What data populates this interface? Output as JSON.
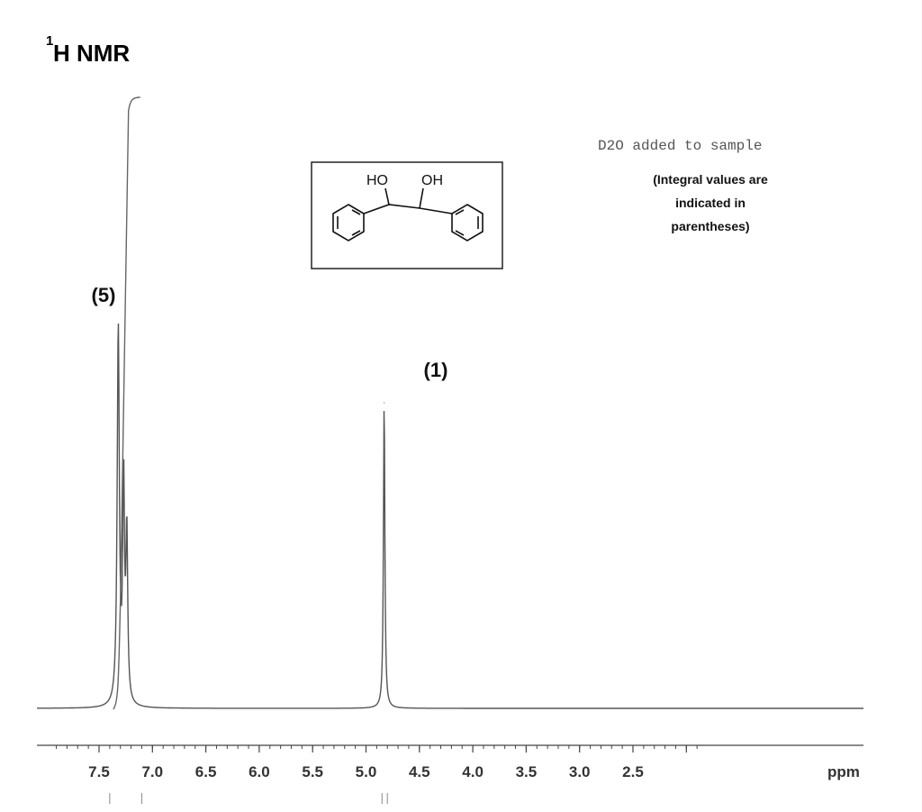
{
  "chart_data": {
    "type": "line",
    "title": "1H NMR",
    "title_main": "H NMR",
    "title_superscript": "1",
    "xlabel": "ppm",
    "ylabel": "",
    "xlim": [
      7.9,
      1.85
    ],
    "x_reversed": true,
    "x_ticks": [
      7.5,
      7.0,
      6.5,
      6.0,
      5.5,
      5.0,
      4.5,
      4.0,
      3.5,
      3.0,
      2.5
    ],
    "x_tick_labels": [
      "7.5",
      "7.0",
      "6.5",
      "6.0",
      "5.5",
      "5.0",
      "4.5",
      "4.0",
      "3.5",
      "3.0",
      "2.5"
    ],
    "grid": false,
    "y_scale": "relative intensity (0 = baseline, 1 = tallest peak)",
    "series": [
      {
        "peaks": [
          {
            "ppm": 7.32,
            "height": 0.95
          },
          {
            "ppm": 7.27,
            "height": 0.55
          },
          {
            "ppm": 7.24,
            "height": 0.42
          },
          {
            "ppm": 4.83,
            "height": 0.77
          }
        ]
      },
      {
        "integral_steps": [
          {
            "ppm": 7.3,
            "rise": 1.0
          }
        ]
      }
    ],
    "annotations": [
      {
        "text": "(5)",
        "ppm": 7.3
      },
      {
        "text": "(1)",
        "ppm": 4.83
      },
      {
        "text": "D2O added to sample"
      },
      {
        "text": "(Integral values are indicated in parentheses)",
        "lines": [
          "(Integral values are",
          "indicated in",
          "parentheses)"
        ]
      }
    ],
    "structure": {
      "name_hidden": true,
      "labels": [
        "HO",
        "OH"
      ]
    },
    "integral_markers_ppm": [
      7.4,
      7.1,
      4.85,
      4.8
    ],
    "colors": {
      "trace": "#555555",
      "integral": "#666666",
      "axis": "#444444",
      "text": "#111111"
    }
  }
}
